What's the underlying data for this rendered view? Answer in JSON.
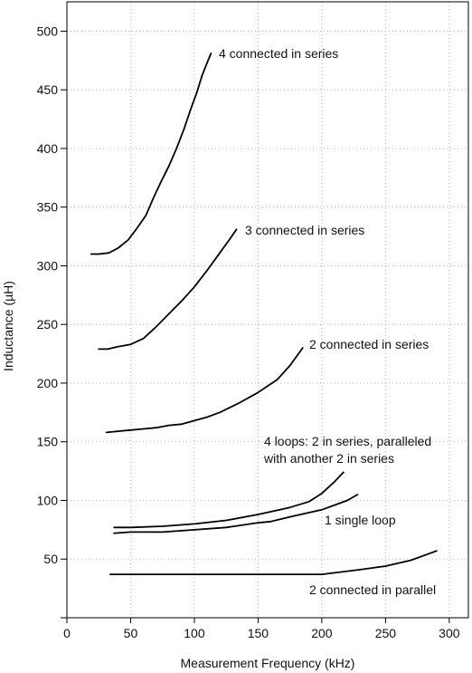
{
  "chart_data": {
    "type": "line",
    "title": "",
    "xlabel": "Measurement Frequency (kHz)",
    "ylabel": "Inductance (µH)",
    "xlim": [
      0,
      315
    ],
    "ylim": [
      0,
      525
    ],
    "xticks": [
      0,
      50,
      100,
      150,
      200,
      250,
      300
    ],
    "yticks": [
      50,
      100,
      150,
      200,
      250,
      300,
      350,
      400,
      450,
      500
    ],
    "grid": "dotted",
    "line_color": "#000000",
    "series": [
      {
        "name": "4 connected in series",
        "x": [
          19,
          25,
          33,
          40,
          48,
          55,
          62,
          68,
          74,
          80,
          86,
          92,
          97,
          102,
          106,
          110,
          113
        ],
        "y": [
          310,
          310,
          311,
          315,
          322,
          332,
          343,
          358,
          372,
          385,
          400,
          417,
          433,
          448,
          462,
          473,
          481
        ]
      },
      {
        "name": "3 connected in series",
        "x": [
          25,
          32,
          40,
          50,
          60,
          70,
          80,
          90,
          100,
          110,
          120,
          128,
          133
        ],
        "y": [
          229,
          229,
          231,
          233,
          238,
          248,
          259,
          270,
          282,
          296,
          311,
          323,
          331
        ]
      },
      {
        "name": "2 connected in series",
        "x": [
          31,
          40,
          50,
          60,
          70,
          80,
          90,
          100,
          110,
          120,
          135,
          150,
          165,
          175,
          185
        ],
        "y": [
          158,
          159,
          160,
          161,
          162,
          164,
          165,
          168,
          171,
          175,
          183,
          192,
          203,
          215,
          230
        ]
      },
      {
        "name": "4 loops: 2 in series, paralleled with another 2 in series",
        "x": [
          37,
          50,
          75,
          100,
          125,
          150,
          175,
          190,
          200,
          210,
          217
        ],
        "y": [
          77,
          77,
          78,
          80,
          83,
          88,
          94,
          99,
          106,
          116,
          124
        ]
      },
      {
        "name": "1 single loop",
        "x": [
          37,
          50,
          75,
          100,
          125,
          150,
          160,
          175,
          200,
          220,
          228
        ],
        "y": [
          72,
          73,
          73,
          75,
          77,
          81,
          82,
          86,
          92,
          100,
          105
        ]
      },
      {
        "name": "2 connected in parallel",
        "x": [
          34,
          75,
          125,
          175,
          200,
          215,
          230,
          250,
          270,
          290
        ],
        "y": [
          37,
          37,
          37,
          37,
          37,
          39,
          41,
          44,
          49,
          57
        ]
      }
    ],
    "annotations": [
      {
        "text": "4 connected in series",
        "series": 0
      },
      {
        "text": "3 connected in series",
        "series": 1
      },
      {
        "text": "2 connected in series",
        "series": 2
      },
      {
        "text": "4 loops: 2 in series, paralleled",
        "series": 3
      },
      {
        "text": "with another 2 in series",
        "series": 3
      },
      {
        "text": "1 single loop",
        "series": 4
      },
      {
        "text": "2 connected in parallel",
        "series": 5
      }
    ]
  }
}
